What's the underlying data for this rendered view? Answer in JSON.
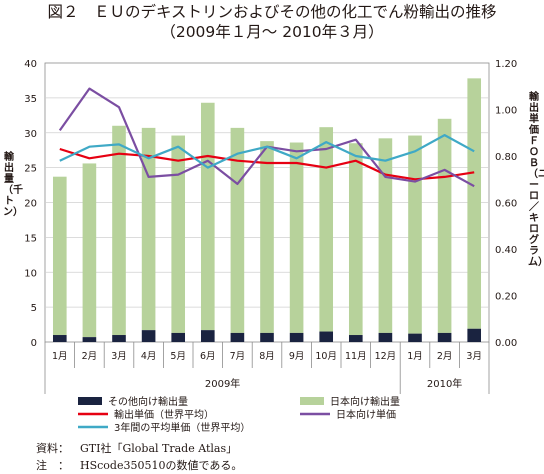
{
  "title": {
    "line1": "図２　ＥＵのデキストリンおよびその他の化工でん粉輸出の推移",
    "line2": "（2009年１月～ 2010年３月）"
  },
  "left_axis_label": "輸出量（千トン）",
  "right_axis_label": "輸出単価ＦＯＢ（ユーロ／キログラム）",
  "year_labels": [
    "2009年",
    "2010年"
  ],
  "colors": {
    "other_export": "#1a2340",
    "japan_export": "#b7d29b",
    "unit_price_world": "#e60012",
    "japan_unit_price": "#7b4ea2",
    "avg_3yr": "#3fa9c6",
    "axis": "#231815",
    "grid": "#d0d0d0"
  },
  "chart_data": {
    "type": "bar+line",
    "categories": [
      "1月",
      "2月",
      "3月",
      "4月",
      "5月",
      "6月",
      "7月",
      "8月",
      "9月",
      "10月",
      "11月",
      "12月",
      "1月",
      "2月",
      "3月"
    ],
    "left_axis": {
      "ylim": [
        0,
        40
      ],
      "ticks": [
        0,
        5,
        10,
        15,
        20,
        25,
        30,
        35,
        40
      ]
    },
    "right_axis": {
      "ylim": [
        0,
        1.2
      ],
      "ticks": [
        "0.00",
        "0.20",
        "0.40",
        "0.60",
        "0.80",
        "1.00",
        "1.20"
      ]
    },
    "bars": [
      {
        "name": "その他向け輸出量",
        "color_key": "other_export",
        "values": [
          1.0,
          0.7,
          1.0,
          1.7,
          1.3,
          1.7,
          1.3,
          1.3,
          1.3,
          1.5,
          1.0,
          1.3,
          1.2,
          1.3,
          1.9
        ]
      },
      {
        "name": "日本向け輸出量",
        "color_key": "japan_export",
        "values": [
          22.7,
          24.9,
          30.0,
          29.0,
          28.3,
          32.6,
          29.4,
          27.5,
          27.3,
          29.3,
          27.5,
          27.9,
          28.4,
          30.7,
          35.9
        ]
      }
    ],
    "lines": [
      {
        "name": "輸出単価（世界平均）",
        "color_key": "unit_price_world",
        "values": [
          0.83,
          0.79,
          0.81,
          0.8,
          0.78,
          0.8,
          0.78,
          0.77,
          0.77,
          0.75,
          0.78,
          0.72,
          0.7,
          0.71,
          0.73
        ]
      },
      {
        "name": "日本向け単価",
        "color_key": "japan_unit_price",
        "values": [
          0.91,
          1.09,
          1.01,
          0.71,
          0.72,
          0.78,
          0.68,
          0.84,
          0.82,
          0.83,
          0.87,
          0.71,
          0.69,
          0.74,
          0.67
        ]
      },
      {
        "name": "3年間の平均単価（世界平均）",
        "color_key": "avg_3yr",
        "values": [
          0.78,
          0.84,
          0.85,
          0.79,
          0.84,
          0.75,
          0.81,
          0.84,
          0.79,
          0.86,
          0.8,
          0.78,
          0.82,
          0.89,
          0.82
        ]
      }
    ],
    "legend": [
      {
        "name": "その他向け輸出量",
        "kind": "bar",
        "color_key": "other_export"
      },
      {
        "name": "日本向け輸出量",
        "kind": "bar",
        "color_key": "japan_export"
      },
      {
        "name": "輸出単価（世界平均）",
        "kind": "line",
        "color_key": "unit_price_world"
      },
      {
        "name": "日本向け単価",
        "kind": "line",
        "color_key": "japan_unit_price"
      },
      {
        "name": "3年間の平均単価（世界平均）",
        "kind": "line",
        "color_key": "avg_3yr"
      }
    ]
  },
  "footnotes": [
    {
      "key": "資料：",
      "text": "GTI社「Global Trade Atlas」"
    },
    {
      "key": "注　：",
      "text": "HScode350510の数値である。"
    }
  ]
}
